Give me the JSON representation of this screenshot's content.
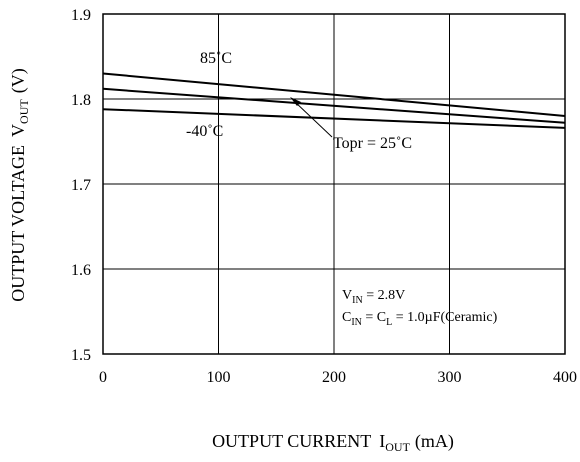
{
  "chart_data": {
    "type": "line",
    "xlabel": "OUTPUT CURRENT",
    "xlabel_symbol": "I",
    "xlabel_sub": "OUT",
    "xlabel_unit": "(mA)",
    "ylabel": "OUTPUT VOLTAGE",
    "ylabel_symbol": "V",
    "ylabel_sub": "OUT",
    "ylabel_unit": "(V)",
    "xlim": [
      0,
      400
    ],
    "ylim": [
      1.5,
      1.9
    ],
    "x_ticks": [
      0,
      100,
      200,
      300,
      400
    ],
    "x_tick_labels": [
      "0",
      "100",
      "200",
      "300",
      "400"
    ],
    "y_ticks": [
      1.5,
      1.6,
      1.7,
      1.8,
      1.9
    ],
    "y_tick_labels": [
      "1.5",
      "1.6",
      "1.7",
      "1.8",
      "1.9"
    ],
    "grid": true,
    "line_color": "#000000",
    "series": [
      {
        "name": "85˚C",
        "x": [
          0,
          400
        ],
        "y": [
          1.83,
          1.78
        ]
      },
      {
        "name": "Topr = 25˚C",
        "x": [
          0,
          400
        ],
        "y": [
          1.812,
          1.772
        ]
      },
      {
        "name": "-40˚C",
        "x": [
          0,
          400
        ],
        "y": [
          1.788,
          1.766
        ]
      }
    ],
    "annotations": {
      "label_85": "85˚C",
      "label_25": "Topr = 25˚C",
      "label_m40": "-40˚C",
      "cond_vin_symbol": "V",
      "cond_vin_sub": "IN",
      "cond_vin_value": " = 2.8V",
      "cond_cin_symbol": "C",
      "cond_cin_sub": "IN",
      "cond_eq": " = C",
      "cond_cl_sub": "L",
      "cond_cap_value": " = 1.0µF(Ceramic)"
    }
  }
}
